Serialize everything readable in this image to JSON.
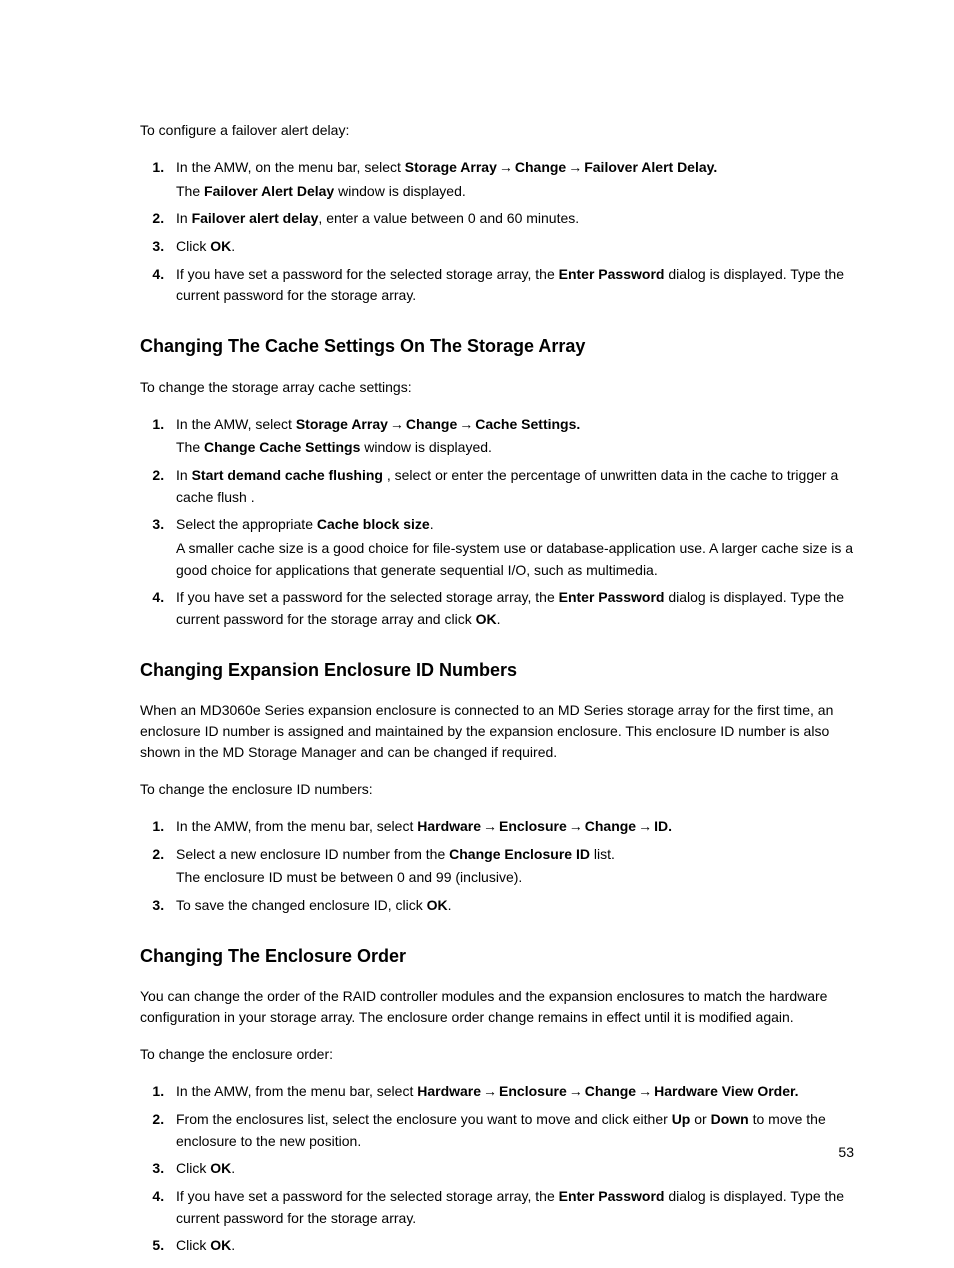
{
  "page_number": "53",
  "typography": {
    "body_fontsize_pt": 11,
    "heading_fontsize_pt": 14,
    "text_color": "#000000",
    "background_color": "#ffffff",
    "font_family": "Segoe UI, Helvetica Neue, Arial, sans-serif"
  },
  "arrow_glyph": "→",
  "section0": {
    "intro": "To configure a failover alert delay:",
    "step1_prefix": "In the AMW, on the menu bar, select ",
    "step1_path_a": "Storage Array",
    "step1_path_b": "Change",
    "step1_path_c": "Failover Alert Delay.",
    "step1_sub_pre": "The ",
    "step1_sub_bold": "Failover Alert Delay",
    "step1_sub_post": " window is displayed.",
    "step2_pre": "In ",
    "step2_bold": "Failover alert delay",
    "step2_post": ", enter a value between 0 and 60 minutes.",
    "step3_pre": "Click ",
    "step3_bold": "OK",
    "step3_post": ".",
    "step4_pre": "If you have set a password for the selected storage array, the ",
    "step4_bold": "Enter Password",
    "step4_post": " dialog is displayed. Type the current password for the storage array."
  },
  "section1": {
    "heading": "Changing The Cache Settings On The Storage Array",
    "intro": "To change the storage array cache settings:",
    "step1_prefix": "In the AMW, select ",
    "step1_path_a": "Storage Array",
    "step1_path_b": "Change",
    "step1_path_c": "Cache Settings.",
    "step1_sub_pre": "The ",
    "step1_sub_bold": "Change Cache Settings",
    "step1_sub_post": " window is displayed.",
    "step2_pre": "In ",
    "step2_bold": "Start demand cache flushing ",
    "step2_post": ", select or enter the percentage of unwritten data in the cache to trigger a cache flush .",
    "step3_pre": "Select the appropriate ",
    "step3_bold": "Cache block size",
    "step3_post": ".",
    "step3_sub": "A smaller cache size is a good choice for file-system use or database-application use. A larger cache size is a good choice for applications that generate sequential I/O, such as multimedia.",
    "step4_pre": "If you have set a password for the selected storage array, the ",
    "step4_bold": "Enter Password",
    "step4_mid": " dialog is displayed. Type the current password for the storage array and click ",
    "step4_bold2": "OK",
    "step4_post": "."
  },
  "section2": {
    "heading": "Changing Expansion Enclosure ID Numbers",
    "para1": "When an MD3060e Series expansion enclosure is connected to an MD Series storage array for the first time, an enclosure ID number is assigned and maintained by the expansion enclosure. This enclosure ID number is also shown in the MD Storage Manager and can be changed if required.",
    "intro": "To change the enclosure ID numbers:",
    "step1_prefix": "In the AMW, from the menu bar, select ",
    "step1_path_a": "Hardware",
    "step1_path_b": "Enclosure",
    "step1_path_c": "Change",
    "step1_path_d": "ID.",
    "step2_pre": "Select a new enclosure ID number from the ",
    "step2_bold": "Change Enclosure ID",
    "step2_post": " list.",
    "step2_sub": "The enclosure ID must be between 0 and 99 (inclusive).",
    "step3_pre": "To save the changed enclosure ID, click ",
    "step3_bold": "OK",
    "step3_post": "."
  },
  "section3": {
    "heading": "Changing The Enclosure Order",
    "para1": "You can change the order of the RAID controller modules and the expansion enclosures to match the hardware configuration in your storage array. The enclosure order change remains in effect until it is modified again.",
    "intro": "To change the enclosure order:",
    "step1_prefix": "In the AMW, from the menu bar, select ",
    "step1_path_a": "Hardware",
    "step1_path_b": "Enclosure",
    "step1_path_c": "Change",
    "step1_path_d": "Hardware View Order.",
    "step2_pre": "From the enclosures list, select the enclosure you want to move and click either ",
    "step2_bold1": "Up",
    "step2_mid": " or ",
    "step2_bold2": "Down",
    "step2_post": " to move the enclosure to the new position.",
    "step3_pre": "Click ",
    "step3_bold": "OK",
    "step3_post": ".",
    "step4_pre": "If you have set a password for the selected storage array, the ",
    "step4_bold": "Enter Password",
    "step4_post": " dialog is displayed. Type the current password for the storage array.",
    "step5_pre": "Click ",
    "step5_bold": "OK",
    "step5_post": "."
  }
}
